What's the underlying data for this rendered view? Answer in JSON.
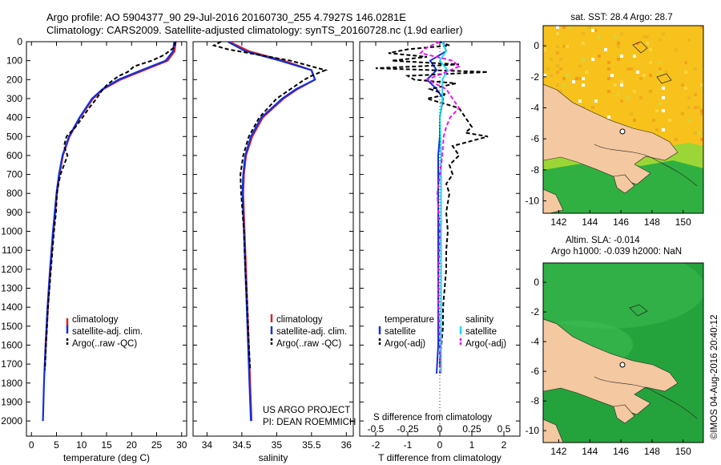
{
  "header": {
    "line1": "Argo profile: AO 5904377_90 29-Jul-2016 20160730_255 4.7927S 146.0281E",
    "line2": "Climatology: CARS2009. Satellite-adjusted climatology: synTS_20160728.nc (1.9d earlier)"
  },
  "colors": {
    "climatology": "#e02020",
    "satellite": "#1030e0",
    "argo": "#000000",
    "satellite_s": "#18e0f0",
    "argo_s": "#ee10ee",
    "land": "#f4c8a0"
  },
  "chart_data": [
    {
      "type": "line",
      "id": "temperature",
      "xlabel": "temperature (deg C)",
      "ylabel": "",
      "xlim": [
        -1,
        31
      ],
      "ylim": [
        2080,
        0
      ],
      "x_ticks": [
        "0",
        "5",
        "10",
        "15",
        "20",
        "25",
        "30"
      ],
      "y_ticks": [
        "0",
        "100",
        "200",
        "300",
        "400",
        "500",
        "600",
        "700",
        "800",
        "900",
        "1000",
        "1100",
        "1200",
        "1300",
        "1400",
        "1500",
        "1600",
        "1700",
        "1800",
        "1900",
        "2000"
      ],
      "legend": [
        "climatology",
        "satellite-adj. clim.",
        "Argo(..raw -QC)"
      ],
      "series": [
        {
          "name": "climatology",
          "depth": [
            0,
            50,
            100,
            150,
            200,
            250,
            300,
            400,
            500,
            600,
            700,
            800,
            1000,
            1200,
            1400,
            1600,
            1750
          ],
          "values": [
            28.8,
            28.6,
            27.2,
            22.5,
            17.8,
            14.4,
            12.3,
            9.7,
            7.6,
            6.3,
            5.6,
            5.1,
            4.4,
            3.8,
            3.3,
            2.9,
            2.6
          ]
        },
        {
          "name": "satellite-adj. clim.",
          "depth": [
            0,
            50,
            100,
            150,
            200,
            250,
            300,
            400,
            500,
            600,
            700,
            800,
            1000,
            1200,
            1400,
            1600,
            1800,
            2000
          ],
          "values": [
            28.5,
            28.3,
            26.8,
            22.0,
            17.4,
            14.2,
            12.1,
            9.6,
            7.5,
            6.2,
            5.5,
            5.0,
            4.3,
            3.7,
            3.2,
            2.8,
            2.5,
            2.3
          ]
        },
        {
          "name": "Argo(..raw -QC)",
          "depth": [
            0,
            30,
            70,
            100,
            130,
            160,
            180,
            200,
            230,
            260,
            300,
            350,
            400,
            450,
            500,
            550,
            600,
            650,
            700,
            750,
            800,
            900,
            1000,
            1200,
            1400,
            1600,
            1730
          ],
          "values": [
            28.8,
            28.5,
            26.5,
            24.0,
            20.5,
            19.2,
            17.5,
            16.4,
            15.0,
            14.0,
            13.0,
            11.5,
            10.2,
            8.8,
            7.0,
            6.5,
            7.2,
            6.5,
            5.8,
            5.4,
            5.1,
            4.9,
            4.5,
            3.9,
            3.3,
            2.9,
            2.7
          ]
        }
      ]
    },
    {
      "type": "line",
      "id": "salinity",
      "xlabel": "salinity",
      "xlim": [
        33.8,
        36.1
      ],
      "ylim": [
        2080,
        0
      ],
      "x_ticks": [
        "34",
        "34.5",
        "35",
        "35.5",
        "36"
      ],
      "legend": [
        "climatology",
        "satellite-adj. clim.",
        "Argo(..raw -QC)"
      ],
      "annotation": [
        "US ARGO PROJECT",
        "PI: DEAN ROEMMICH"
      ],
      "series": [
        {
          "name": "climatology",
          "depth": [
            0,
            50,
            100,
            150,
            200,
            250,
            300,
            400,
            500,
            600,
            700,
            800,
            1000,
            1200,
            1400,
            1600,
            1800,
            2000
          ],
          "values": [
            34.32,
            34.6,
            35.1,
            35.5,
            35.55,
            35.3,
            35.1,
            34.8,
            34.65,
            34.56,
            34.53,
            34.52,
            34.54,
            34.56,
            34.58,
            34.6,
            34.62,
            34.64
          ]
        },
        {
          "name": "satellite-adj. clim.",
          "depth": [
            0,
            50,
            100,
            150,
            200,
            250,
            300,
            400,
            500,
            600,
            700,
            800,
            1000,
            1200,
            1400,
            1600,
            1800,
            2000
          ],
          "values": [
            34.3,
            34.55,
            35.05,
            35.5,
            35.55,
            35.28,
            35.08,
            34.78,
            34.63,
            34.55,
            34.52,
            34.51,
            34.53,
            34.55,
            34.57,
            34.59,
            34.61,
            34.63
          ]
        },
        {
          "name": "Argo(..raw -QC)",
          "depth": [
            0,
            20,
            40,
            60,
            80,
            100,
            120,
            150,
            180,
            200,
            250,
            300,
            400,
            500,
            600,
            700,
            800,
            1000,
            1200,
            1400,
            1600,
            1730
          ],
          "values": [
            34.2,
            34.1,
            34.3,
            34.6,
            34.9,
            35.2,
            35.4,
            35.7,
            35.5,
            35.4,
            35.2,
            35.0,
            34.75,
            34.6,
            34.52,
            34.48,
            34.49,
            34.53,
            34.55,
            34.58,
            34.6,
            34.62
          ]
        }
      ]
    },
    {
      "type": "line",
      "id": "difference",
      "xlabel": "T difference from climatology",
      "x2label": "S difference from climatology",
      "xlim": [
        -2.5,
        2.5
      ],
      "ylim": [
        2080,
        0
      ],
      "x_ticks": [
        "-2",
        "-1",
        "0",
        "1",
        "2"
      ],
      "x2_ticks": [
        "-0.5",
        "-0.25",
        "0",
        "0.25",
        "0.5"
      ],
      "legend_t_title": "temperature",
      "legend_s_title": "salinity",
      "legend": [
        "satellite",
        "Argo(-adj)",
        "satellite",
        "Argo(-adj)"
      ],
      "series": [
        {
          "name": "T satellite",
          "depth": [
            0,
            50,
            100,
            150,
            200,
            250,
            300,
            400,
            500,
            600,
            800,
            1000,
            1200,
            1400,
            1600,
            1750
          ],
          "values": [
            0.1,
            0.2,
            -0.3,
            -0.1,
            -0.4,
            -0.1,
            0.1,
            0.0,
            0.0,
            -0.05,
            -0.05,
            -0.05,
            -0.05,
            -0.05,
            -0.05,
            -0.1
          ]
        },
        {
          "name": "T Argo(-adj)",
          "depth": [
            0,
            20,
            40,
            60,
            80,
            100,
            120,
            140,
            160,
            180,
            200,
            220,
            250,
            280,
            300,
            350,
            400,
            450,
            480,
            500,
            550,
            600,
            650,
            700,
            750,
            800,
            900,
            1000,
            1100,
            1200,
            1300,
            1400,
            1500,
            1600,
            1700
          ],
          "values": [
            0.0,
            0.3,
            -1.0,
            -1.6,
            -0.4,
            -1.5,
            0.6,
            -2.0,
            1.5,
            -1.0,
            -0.8,
            0.5,
            -0.3,
            0.2,
            -0.4,
            0.6,
            0.8,
            1.0,
            0.8,
            1.5,
            0.4,
            0.6,
            0.3,
            0.4,
            0.2,
            0.3,
            0.2,
            0.25,
            0.2,
            0.2,
            0.15,
            0.1,
            0.1,
            0.05,
            0.0
          ]
        },
        {
          "name": "S satellite",
          "depth": [
            0,
            50,
            100,
            150,
            200,
            300,
            400,
            600,
            800,
            1000,
            1200,
            1400,
            1600,
            1750
          ],
          "values": [
            0.02,
            0.05,
            0.0,
            0.06,
            0.02,
            0.02,
            0.0,
            0.01,
            0.01,
            0.01,
            0.01,
            0.01,
            0.01,
            0.01
          ]
        },
        {
          "name": "S Argo(-adj)",
          "depth": [
            0,
            30,
            60,
            100,
            130,
            160,
            200,
            250,
            300,
            350,
            400,
            450,
            500,
            600,
            700,
            800,
            900,
            1000,
            1200,
            1400,
            1600,
            1750
          ],
          "values": [
            0.0,
            -0.1,
            -0.15,
            0.1,
            0.15,
            0.05,
            -0.1,
            0.05,
            0.1,
            0.15,
            0.08,
            0.05,
            0.03,
            0.02,
            0.0,
            -0.02,
            -0.01,
            0.0,
            -0.01,
            -0.01,
            0.0,
            0.0
          ]
        }
      ]
    },
    {
      "type": "heatmap",
      "id": "sst_map",
      "title": "sat. SST: 28.4 Argo: 28.7",
      "x_ticks": [
        "142",
        "144",
        "146",
        "148",
        "150"
      ],
      "y_ticks": [
        "0",
        "-2",
        "-4",
        "-6",
        "-8",
        "-10"
      ],
      "xlim": [
        141,
        151.3
      ],
      "ylim": [
        -10.8,
        1.3
      ]
    },
    {
      "type": "heatmap",
      "id": "sla_map",
      "title_line1": "Altim. SLA: -0.014",
      "title_line2": "Argo h1000: -0.039 h2000: NaN",
      "x_ticks": [
        "142",
        "144",
        "146",
        "148",
        "150"
      ],
      "y_ticks": [
        "0",
        "-2",
        "-4",
        "-6",
        "-8",
        "-10"
      ],
      "xlim": [
        141,
        151.3
      ],
      "ylim": [
        -10.8,
        1.3
      ]
    }
  ],
  "credit": "©IMOS 04-Aug-2016 20:40:12"
}
